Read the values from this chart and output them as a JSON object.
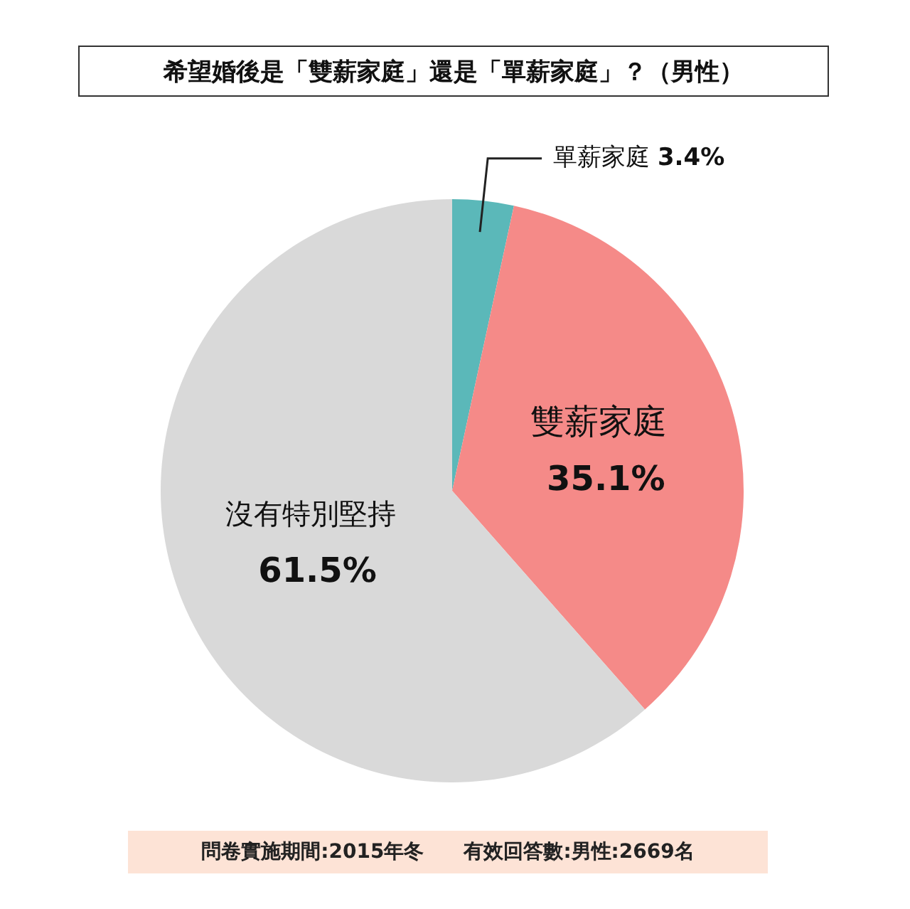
{
  "chart_data": {
    "type": "pie",
    "title": "希望婚後是「雙薪家庭」還是「單薪家庭」？（男性）",
    "categories": [
      "單薪家庭",
      "雙薪家庭",
      "沒有特別堅持"
    ],
    "values": [
      3.4,
      35.1,
      61.5
    ],
    "colors": [
      "#5bb8b9",
      "#f58a88",
      "#d9d9d9"
    ],
    "value_labels": [
      "3.4%",
      "35.1%",
      "61.5%"
    ],
    "legend": false,
    "annotations": [
      "問卷實施期間:2015年冬　　有效回答數:男性:2669名"
    ]
  }
}
